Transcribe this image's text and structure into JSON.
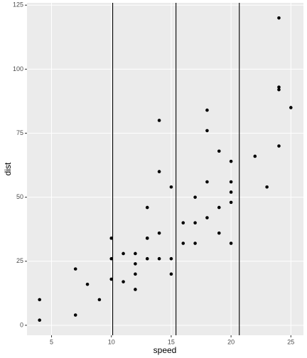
{
  "chart_data": {
    "type": "scatter",
    "x_label": "speed",
    "y_label": "dist",
    "x": [
      4,
      4,
      7,
      7,
      8,
      9,
      10,
      10,
      10,
      11,
      11,
      12,
      12,
      12,
      12,
      13,
      13,
      13,
      13,
      14,
      14,
      14,
      14,
      15,
      15,
      15,
      16,
      16,
      17,
      17,
      17,
      18,
      18,
      18,
      18,
      19,
      19,
      19,
      20,
      20,
      20,
      20,
      20,
      22,
      23,
      24,
      24,
      24,
      24,
      25
    ],
    "y": [
      2,
      10,
      4,
      22,
      16,
      10,
      18,
      26,
      34,
      17,
      28,
      14,
      20,
      24,
      28,
      26,
      34,
      34,
      46,
      26,
      36,
      60,
      80,
      20,
      26,
      54,
      32,
      40,
      32,
      40,
      50,
      42,
      56,
      76,
      84,
      36,
      46,
      68,
      32,
      48,
      52,
      56,
      64,
      66,
      54,
      70,
      92,
      93,
      120,
      85
    ],
    "color": "#000000",
    "vlines": [
      10.11,
      15.4,
      20.69
    ],
    "xlim": [
      2.95,
      26.05
    ],
    "ylim": [
      -3.9,
      125.9
    ],
    "xticks": [
      5,
      10,
      15,
      20,
      25
    ],
    "yticks": [
      0,
      25,
      50,
      75,
      100,
      125
    ],
    "grid": true
  }
}
